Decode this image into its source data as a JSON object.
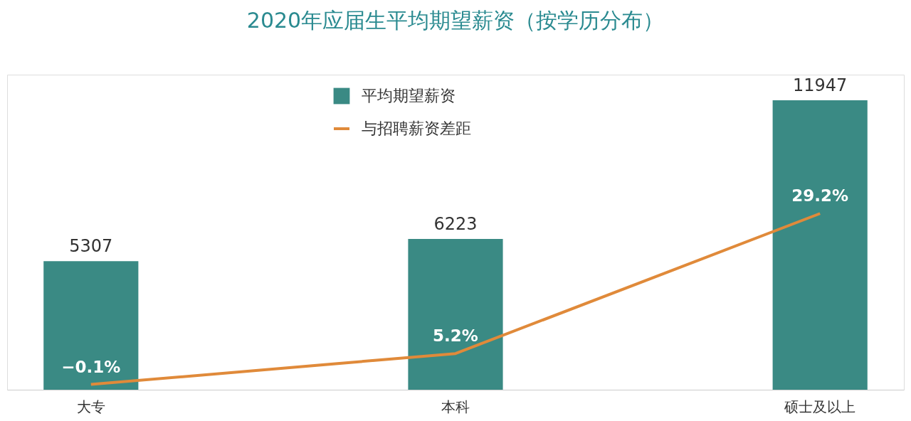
{
  "chart_data": {
    "type": "bar",
    "title": "2020年应届生平均期望薪资（按学历分布）",
    "categories": [
      "大专",
      "本科",
      "硕士及以上"
    ],
    "series": [
      {
        "name": "平均期望薪资",
        "color": "#3a8a84",
        "values": [
          5307,
          6223,
          11947
        ],
        "value_labels": [
          "5307",
          "6223",
          "11947"
        ]
      },
      {
        "name": "与招聘薪资差距",
        "type": "line",
        "axis": "y2",
        "color": "#e08a3a",
        "values": [
          -0.1,
          5.2,
          29.2
        ],
        "value_labels": [
          "−0.1%",
          "5.2%",
          "29.2%"
        ]
      }
    ],
    "ylim": [
      0,
      13000
    ],
    "y2lim": [
      -1,
      53
    ],
    "tick_labels": "x",
    "grid": false,
    "legend": "top",
    "marker": "none",
    "line_style": "solid"
  }
}
